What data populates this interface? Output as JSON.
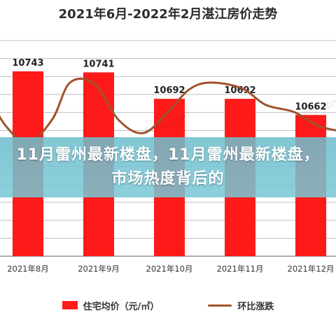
{
  "banner": {
    "text": "11月雷州最新楼盘，11月雷州最新楼盘，市场热度背后的"
  },
  "chart_data": {
    "type": "bar",
    "title": "2021年6月-2022年2月湛江房价走势",
    "categories": [
      "2021年8月",
      "2021年9月",
      "2021年10月",
      "2021年11月",
      "2021年12月"
    ],
    "series": [
      {
        "name": "住宅均价（元/㎡）",
        "type": "bar",
        "values": [
          10743,
          10741,
          10692,
          10692,
          10662
        ],
        "color": "#ff1a1a"
      },
      {
        "name": "环比涨跌",
        "type": "line",
        "color": "#a0522d"
      }
    ],
    "ylim": [
      10400,
      10800
    ],
    "grid": true,
    "legend": "bottom"
  },
  "watermark": "Fang.com"
}
